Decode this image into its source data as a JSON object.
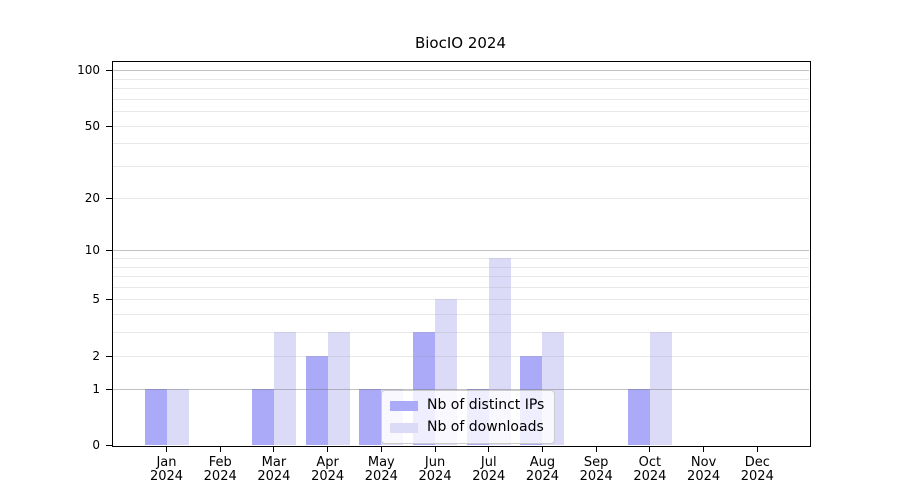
{
  "title": "BiocIO 2024",
  "chart_data": {
    "type": "bar",
    "title": "BiocIO 2024",
    "categories": [
      "Jan",
      "Feb",
      "Mar",
      "Apr",
      "May",
      "Jun",
      "Jul",
      "Aug",
      "Sep",
      "Oct",
      "Nov",
      "Dec"
    ],
    "year": "2024",
    "series": [
      {
        "name": "Nb of distinct IPs",
        "color": "#aaaaf8",
        "values": [
          1,
          0,
          1,
          2,
          1,
          3,
          1,
          2,
          0,
          1,
          0,
          0
        ]
      },
      {
        "name": "Nb of downloads",
        "color": "#dbdbf8",
        "values": [
          1,
          0,
          3,
          3,
          1,
          5,
          9,
          3,
          0,
          3,
          0,
          0
        ]
      }
    ],
    "xlabel": "",
    "ylabel": "",
    "y_scale": "log1p",
    "ylim": [
      0,
      114
    ],
    "y_ticks": [
      0,
      1,
      2,
      5,
      10,
      20,
      50,
      100
    ],
    "major_gridlines": [
      1,
      10,
      100
    ],
    "minor_gridlines": [
      2,
      3,
      4,
      5,
      6,
      7,
      8,
      9,
      20,
      30,
      40,
      50,
      60,
      70,
      80,
      90
    ],
    "grid": true,
    "legend_position": "inside bottom-center"
  },
  "colors": {
    "background": "#ffffff",
    "bar_distinct_ips": "#aaaaf8",
    "bar_downloads": "#dbdbf8",
    "axis": "#000000",
    "major_grid": "#bebebe",
    "minor_grid": "#ebebeb",
    "legend_border": "#cccccc",
    "legend_background": "rgba(255,255,255,0.8)"
  }
}
